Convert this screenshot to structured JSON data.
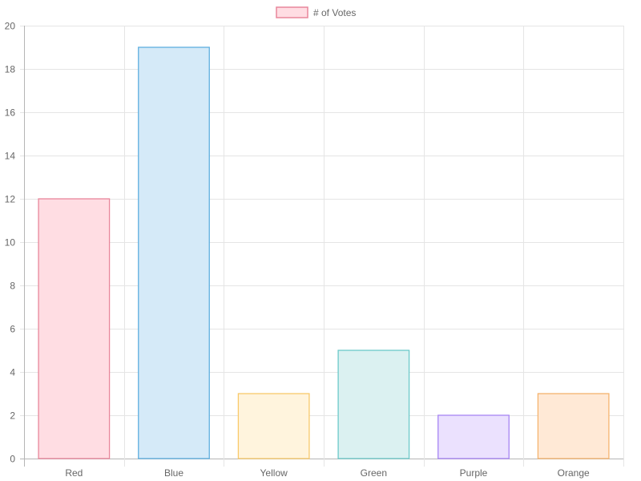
{
  "chart_data": {
    "type": "bar",
    "categories": [
      "Red",
      "Blue",
      "Yellow",
      "Green",
      "Purple",
      "Orange"
    ],
    "series": [
      {
        "name": "# of Votes",
        "values": [
          12,
          19,
          3,
          5,
          2,
          3
        ]
      }
    ],
    "ylim": [
      0,
      20
    ],
    "yticks": [
      0,
      2,
      4,
      6,
      8,
      10,
      12,
      14,
      16,
      18,
      20
    ],
    "grid": true,
    "legend_position": "top",
    "colors": {
      "fills": [
        "#ffdde3",
        "#d5eaf8",
        "#fff4dd",
        "#dbf1f1",
        "#ebe1fe",
        "#ffe9d6"
      ],
      "strokes": [
        "#e8869b",
        "#5fafe0",
        "#f8c96a",
        "#6cc9c9",
        "#a785f3",
        "#f5b36d"
      ],
      "grid": "#e5e5e5",
      "axis": "#b5b5b5",
      "text": "#666666"
    }
  }
}
